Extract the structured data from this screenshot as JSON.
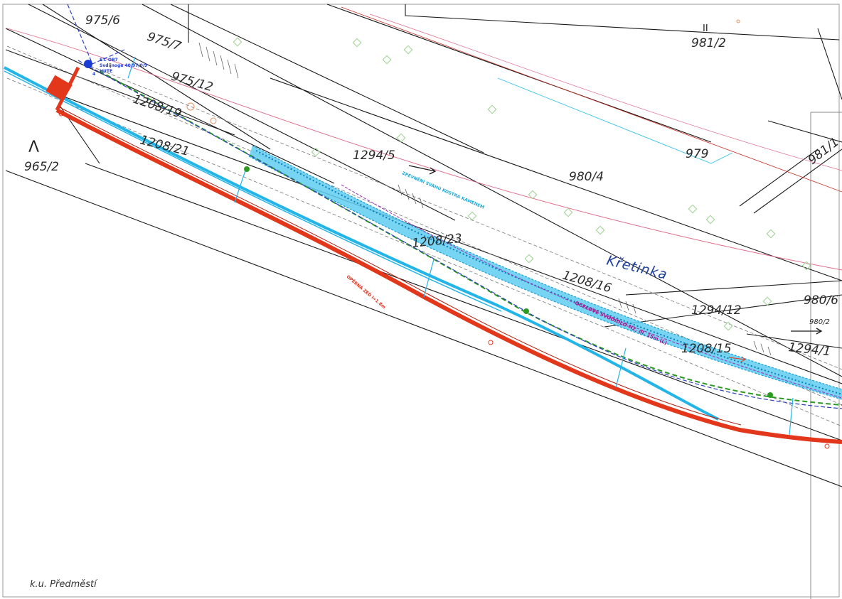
{
  "map": {
    "cadastral_area": "k.u. Předměstí",
    "watercourse": "Křetinka",
    "north_mark": "Λ",
    "top_mark": "II",
    "parcels": {
      "p975_6": "975/6",
      "p975_7": "975/7",
      "p975_12": "975/12",
      "p1208_19": "1208/19",
      "p1208_21": "1208/21",
      "p965_2": "965/2",
      "p1294_5": "1294/5",
      "p980_4": "980/4",
      "p979": "979",
      "p981_2": "981/2",
      "p981_1": "981/1",
      "p1208_23": "1208/23",
      "p1208_16": "1208/16",
      "p1294_12": "1294/12",
      "p980_6": "980/6",
      "p980_2": "980/2",
      "p1208_15": "1208/15",
      "p1294_1": "1294/1"
    },
    "annotations": {
      "blue_note_1": "ST. OB7",
      "blue_note_2": "Svdijnoge 40/97/0/9",
      "blue_note_3": "HUTE",
      "cyan_note": "ZPEVNĚNÍ SVAHU KOSTRA KAMENEM",
      "magenta_note": "OCELOVÉ SVODIDLO-H2, dl. 15m (L)",
      "red_note": "OPĚRNÁ ZEĎ l=1.8m"
    },
    "colors": {
      "red_line": "#e2371b",
      "cyan_band": "#23b4e8",
      "green_dashed": "#2a9b20",
      "blue_dashed": "#2e3fc2",
      "cadastral_lines": "#1a1a1a",
      "pink_line": "#e06a8a"
    }
  }
}
